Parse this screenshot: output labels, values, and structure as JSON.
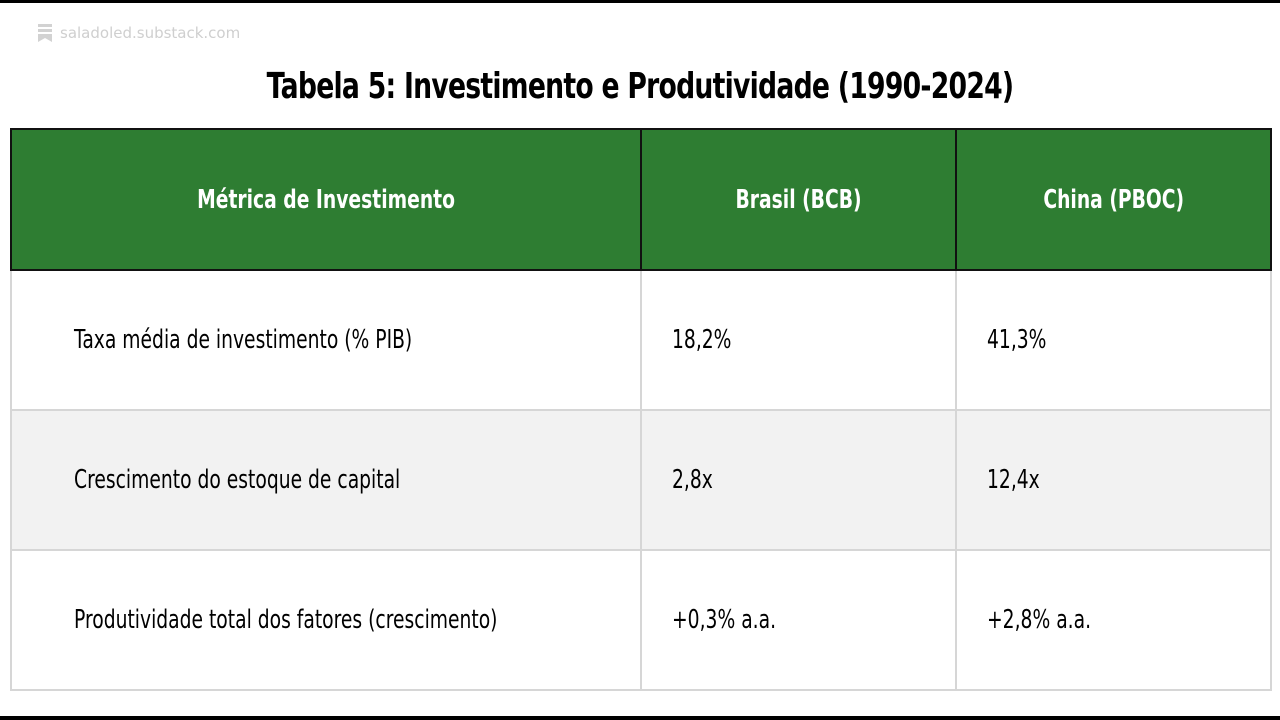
{
  "watermark": {
    "icon": "bookmark-icon",
    "text": "saladoled.substack.com",
    "color": "#cfcfcf"
  },
  "title": "Tabela 5: Investimento e Produtividade (1990-2024)",
  "colors": {
    "header_bg": "#2e7d32",
    "header_text": "#ffffff",
    "row_alt_bg": "#f2f2f2",
    "row_bg": "#ffffff",
    "border": "#d6d6d6"
  },
  "table": {
    "headers": [
      "Métrica de Investimento",
      "Brasil (BCB)",
      "China (PBOC)"
    ],
    "rows": [
      [
        "Taxa média de investimento (% PIB)",
        "18,2%",
        "41,3%"
      ],
      [
        "Crescimento do estoque de capital",
        "2,8x",
        "12,4x"
      ],
      [
        "Produtividade total dos fatores (crescimento)",
        "+0,3% a.a.",
        "+2,8% a.a."
      ]
    ]
  }
}
